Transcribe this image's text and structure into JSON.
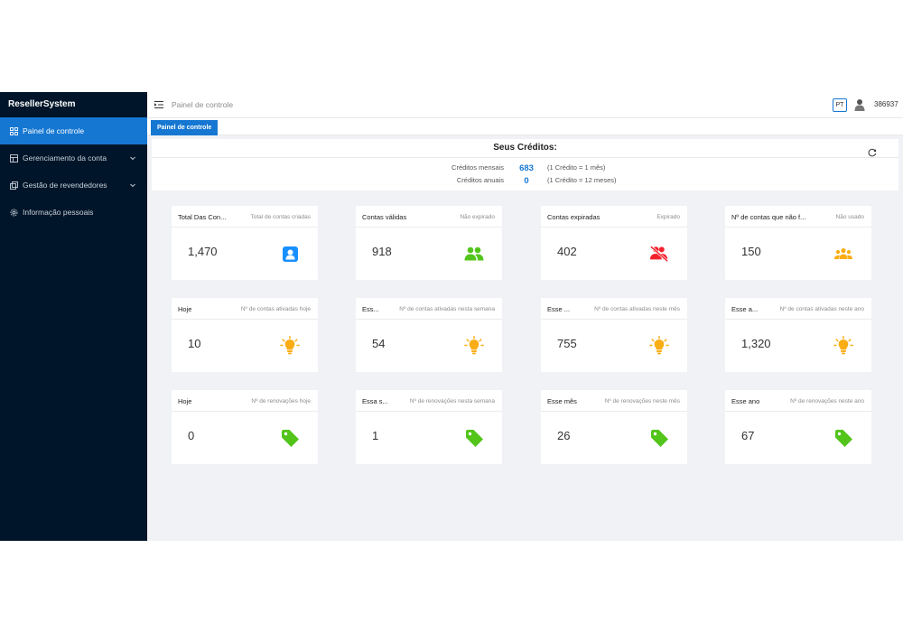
{
  "brand": "ResellerSystem",
  "sidebar": {
    "items": [
      {
        "label": "Painel de controle"
      },
      {
        "label": "Gerenciamento da conta"
      },
      {
        "label": "Gestão de revendedores"
      },
      {
        "label": "Informação pessoais"
      }
    ]
  },
  "header": {
    "title": "Painel de controle",
    "lang": "PT",
    "username": "386937"
  },
  "tabs": [
    {
      "label": "Painel de controle"
    }
  ],
  "credits": {
    "title": "Seus Créditos:",
    "rows": [
      {
        "label": "Créditos mensais",
        "value": "683",
        "note": "(1 Crédito = 1 mês)"
      },
      {
        "label": "Créditos anuais",
        "value": "0",
        "note": "(1 Crédito = 12 meses)"
      }
    ]
  },
  "cards": [
    {
      "title": "Total Das Con...",
      "sub": "Total de contas criadas",
      "value": "1,470",
      "icon": "user-icon",
      "color": "#1890ff"
    },
    {
      "title": "Contas válidas",
      "sub": "Não expirado",
      "value": "918",
      "icon": "team-icon",
      "color": "#52c41a"
    },
    {
      "title": "Contas expiradas",
      "sub": "Expirado",
      "value": "402",
      "icon": "user-off-icon",
      "color": "#f5222d"
    },
    {
      "title": "Nº de contas que não f...",
      "sub": "Não usado",
      "value": "150",
      "icon": "group-icon",
      "color": "#faad14"
    },
    {
      "title": "Hoje",
      "sub": "Nº de contas ativadas hoje",
      "value": "10",
      "icon": "bulb-icon",
      "color": "#faad14"
    },
    {
      "title": "Ess...",
      "sub": "Nº de contas ativadas nesta semana",
      "value": "54",
      "icon": "bulb-icon",
      "color": "#faad14"
    },
    {
      "title": "Esse ...",
      "sub": "Nº de contas ativadas neste mês",
      "value": "755",
      "icon": "bulb-icon",
      "color": "#faad14"
    },
    {
      "title": "Esse a...",
      "sub": "Nº de contas ativadas neste ano",
      "value": "1,320",
      "icon": "bulb-icon",
      "color": "#faad14"
    },
    {
      "title": "Hoje",
      "sub": "Nº de renovações hoje",
      "value": "0",
      "icon": "tag-icon",
      "color": "#52c41a"
    },
    {
      "title": "Essa s...",
      "sub": "Nº de renovações nesta semana",
      "value": "1",
      "icon": "tag-icon",
      "color": "#52c41a"
    },
    {
      "title": "Esse mês",
      "sub": "Nº de renovações neste mês",
      "value": "26",
      "icon": "tag-icon",
      "color": "#52c41a"
    },
    {
      "title": "Esse ano",
      "sub": "Nº de renovações neste ano",
      "value": "67",
      "icon": "tag-icon",
      "color": "#52c41a"
    }
  ],
  "colors": {
    "sidebar_bg": "#001529",
    "accent": "#1677d2"
  }
}
